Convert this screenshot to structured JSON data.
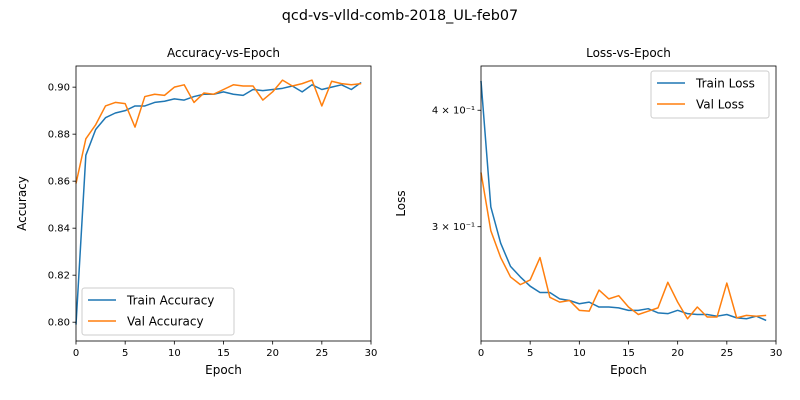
{
  "suptitle": "qcd-vs-vlld-comb-2018_UL-feb07",
  "chart_data": [
    {
      "type": "line",
      "title": "Accuracy-vs-Epoch",
      "xlabel": "Epoch",
      "ylabel": "Accuracy",
      "xlim": [
        0,
        30
      ],
      "ylim": [
        0.792,
        0.909
      ],
      "yscale": "linear",
      "xticks": [
        0,
        5,
        10,
        15,
        20,
        25,
        30
      ],
      "xtick_labels": [
        "0",
        "5",
        "10",
        "15",
        "20",
        "25",
        "30"
      ],
      "yticks": [
        0.8,
        0.82,
        0.84,
        0.86,
        0.88,
        0.9
      ],
      "ytick_labels": [
        "0.80",
        "0.82",
        "0.84",
        "0.86",
        "0.88",
        "0.90"
      ],
      "grid": false,
      "legend_position": "lower-left",
      "x": [
        0,
        1,
        2,
        3,
        4,
        5,
        6,
        7,
        8,
        9,
        10,
        11,
        12,
        13,
        14,
        15,
        16,
        17,
        18,
        19,
        20,
        21,
        22,
        23,
        24,
        25,
        26,
        27,
        28,
        29
      ],
      "series": [
        {
          "name": "Train Accuracy",
          "color": "#1f77b4",
          "values": [
            0.799,
            0.871,
            0.882,
            0.887,
            0.889,
            0.89,
            0.892,
            0.892,
            0.8935,
            0.894,
            0.895,
            0.8945,
            0.896,
            0.897,
            0.897,
            0.898,
            0.897,
            0.8965,
            0.899,
            0.8985,
            0.899,
            0.8995,
            0.9005,
            0.898,
            0.901,
            0.899,
            0.9,
            0.901,
            0.899,
            0.902
          ]
        },
        {
          "name": "Val Accuracy",
          "color": "#ff7f0e",
          "values": [
            0.859,
            0.878,
            0.884,
            0.892,
            0.8935,
            0.893,
            0.883,
            0.896,
            0.897,
            0.8965,
            0.9,
            0.901,
            0.8935,
            0.8975,
            0.897,
            0.899,
            0.901,
            0.9005,
            0.9005,
            0.8945,
            0.898,
            0.903,
            0.9005,
            0.9015,
            0.903,
            0.892,
            0.9025,
            0.9015,
            0.901,
            0.9015
          ]
        }
      ]
    },
    {
      "type": "line",
      "title": "Loss-vs-Epoch",
      "xlabel": "Epoch",
      "ylabel": "Loss",
      "xlim": [
        0,
        30
      ],
      "ylim": [
        0.2262,
        0.4462
      ],
      "yscale": "log",
      "xticks": [
        0,
        5,
        10,
        15,
        20,
        25,
        30
      ],
      "xtick_labels": [
        "0",
        "5",
        "10",
        "15",
        "20",
        "25",
        "30"
      ],
      "yticks": [
        0.3,
        0.4
      ],
      "ytick_labels": [
        "3 × 10⁻¹",
        "4 × 10⁻¹"
      ],
      "grid": false,
      "legend_position": "upper-right",
      "x": [
        0,
        1,
        2,
        3,
        4,
        5,
        6,
        7,
        8,
        9,
        10,
        11,
        12,
        13,
        14,
        15,
        16,
        17,
        18,
        19,
        20,
        21,
        22,
        23,
        24,
        25,
        26,
        27,
        28,
        29
      ],
      "series": [
        {
          "name": "Train Loss",
          "color": "#1f77b4",
          "values": [
            0.43,
            0.315,
            0.288,
            0.272,
            0.265,
            0.259,
            0.255,
            0.255,
            0.251,
            0.25,
            0.248,
            0.249,
            0.246,
            0.246,
            0.2455,
            0.244,
            0.244,
            0.245,
            0.2425,
            0.242,
            0.244,
            0.242,
            0.2415,
            0.2415,
            0.2405,
            0.2415,
            0.2395,
            0.239,
            0.2405,
            0.238
          ]
        },
        {
          "name": "Val Loss",
          "color": "#ff7f0e",
          "values": [
            0.343,
            0.297,
            0.278,
            0.265,
            0.26,
            0.263,
            0.278,
            0.252,
            0.249,
            0.25,
            0.244,
            0.2435,
            0.2565,
            0.251,
            0.253,
            0.246,
            0.2415,
            0.2435,
            0.2455,
            0.2615,
            0.249,
            0.239,
            0.246,
            0.24,
            0.24,
            0.261,
            0.2395,
            0.241,
            0.2405,
            0.241
          ]
        }
      ]
    }
  ]
}
